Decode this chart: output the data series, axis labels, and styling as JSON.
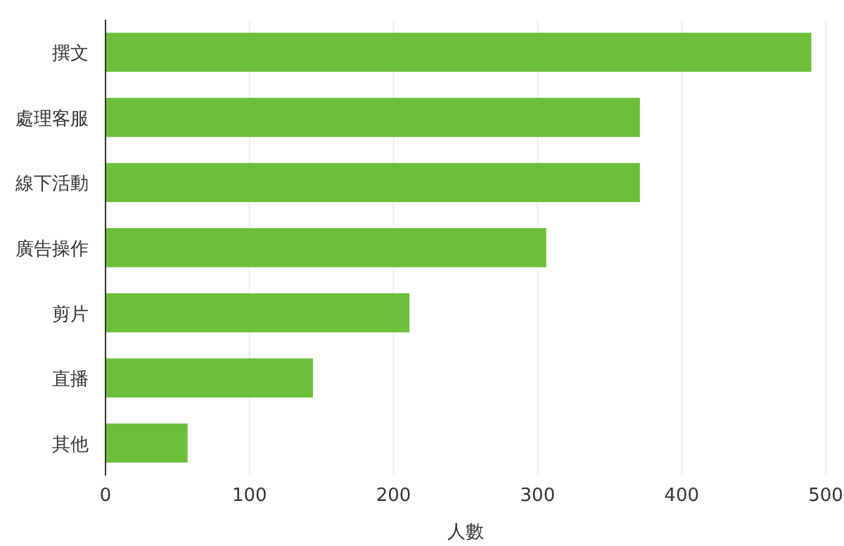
{
  "chart_data": {
    "type": "bar",
    "orientation": "horizontal",
    "categories": [
      "撰文",
      "處理客服",
      "線下活動",
      "廣告操作",
      "剪片",
      "直播",
      "其他"
    ],
    "values": [
      490,
      371,
      371,
      306,
      211,
      144,
      57
    ],
    "color": "#6cbf3a",
    "xlabel": "人數",
    "xlim": [
      0,
      500
    ],
    "xticks": [
      0,
      100,
      200,
      300,
      400,
      500
    ],
    "grid": "x"
  }
}
